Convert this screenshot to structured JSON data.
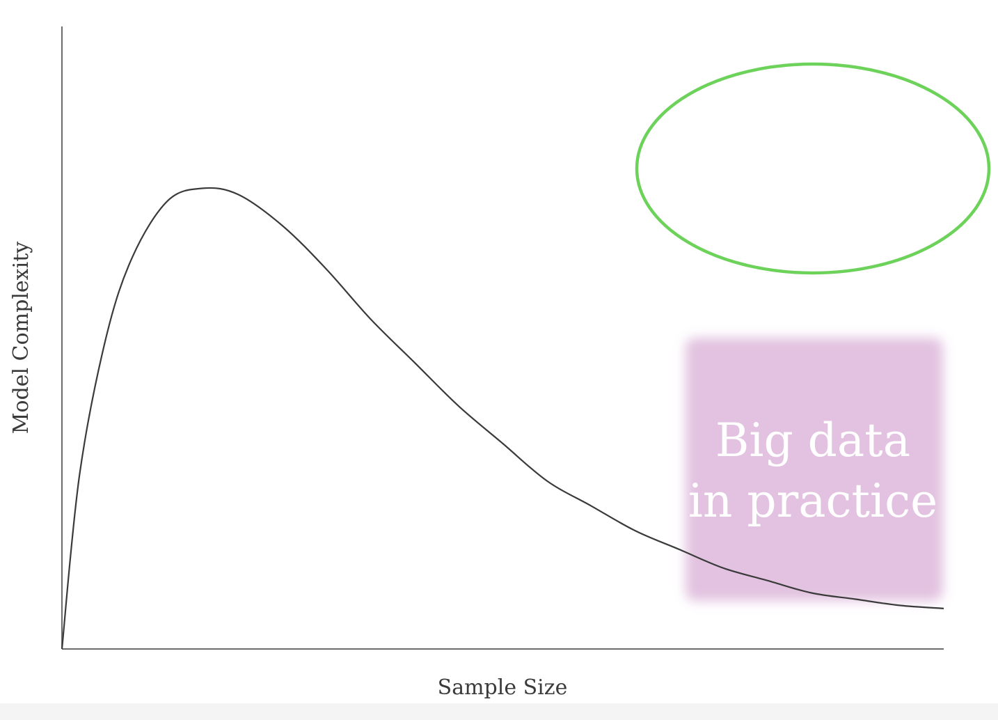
{
  "chart_data": {
    "type": "line",
    "title": "",
    "xlabel": "Sample Size",
    "ylabel": "Model Complexity",
    "xlim": [
      0,
      1
    ],
    "ylim": [
      0,
      1
    ],
    "grid": false,
    "series": [
      {
        "x": [
          0,
          0.02,
          0.05,
          0.08,
          0.12,
          0.16,
          0.2,
          0.25,
          0.3,
          0.35,
          0.4,
          0.45,
          0.5,
          0.55,
          0.6,
          0.65,
          0.7,
          0.75,
          0.8,
          0.85,
          0.9,
          0.95,
          1.0
        ],
        "values": [
          0.0,
          0.28,
          0.5,
          0.63,
          0.72,
          0.74,
          0.73,
          0.68,
          0.61,
          0.53,
          0.46,
          0.39,
          0.33,
          0.27,
          0.23,
          0.19,
          0.16,
          0.13,
          0.11,
          0.09,
          0.08,
          0.07,
          0.065
        ]
      }
    ],
    "annotations": {
      "ellipse_color": "#6cd25a",
      "callout": {
        "text_lines": [
          "Big data",
          "in practice"
        ],
        "fill_color": "#e2c2e0",
        "text_color": "#ffffff"
      }
    }
  }
}
